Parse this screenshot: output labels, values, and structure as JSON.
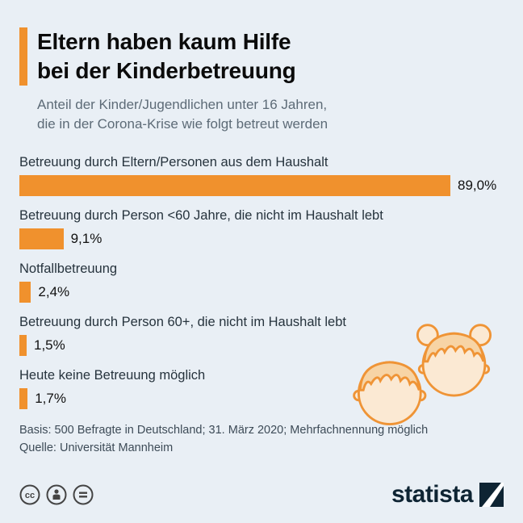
{
  "theme": {
    "background": "#e9eff5",
    "accent": "#f0912d",
    "bar_color": "#f0912d",
    "title_color": "#0b0b0b",
    "subtitle_color": "#5d6b77",
    "label_color": "#26333d",
    "footer_color": "#3d4b57",
    "logo_color": "#0e2433"
  },
  "header": {
    "title_lines": [
      "Eltern haben kaum Hilfe",
      "bei der Kinderbetreuung"
    ],
    "subtitle_lines": [
      "Anteil der Kinder/Jugendlichen unter 16 Jahren,",
      "die in der Corona-Krise wie folgt betreut werden"
    ]
  },
  "chart_data": {
    "type": "bar",
    "orientation": "horizontal",
    "title": "Eltern haben kaum Hilfe bei der Kinderbetreuung",
    "subtitle": "Anteil der Kinder/Jugendlichen unter 16 Jahren, die in der Corona-Krise wie folgt betreut werden",
    "categories": [
      "Betreuung durch Eltern/Personen aus dem Haushalt",
      "Betreuung durch Person <60 Jahre, die nicht im Haushalt lebt",
      "Notfallbetreuung",
      "Betreuung durch Person 60+, die nicht im Haushalt lebt",
      "Heute keine Betreuung möglich"
    ],
    "values": [
      89.0,
      9.1,
      2.4,
      1.5,
      1.7
    ],
    "value_labels": [
      "89,0%",
      "9,1%",
      "2,4%",
      "1,5%",
      "1,7%"
    ],
    "unit": "%",
    "xlim": [
      0,
      100
    ],
    "grid": false,
    "legend": false,
    "bar_color": "#f0912d"
  },
  "footer": {
    "basis": "Basis: 500 Befragte in Deutschland; 31. März 2020; Mehrfachnennung möglich",
    "source": "Quelle: Universität Mannheim"
  },
  "branding": {
    "logo_text": "statista",
    "license_icons": [
      "cc-icon",
      "attribution-icon",
      "no-derivatives-icon"
    ]
  }
}
